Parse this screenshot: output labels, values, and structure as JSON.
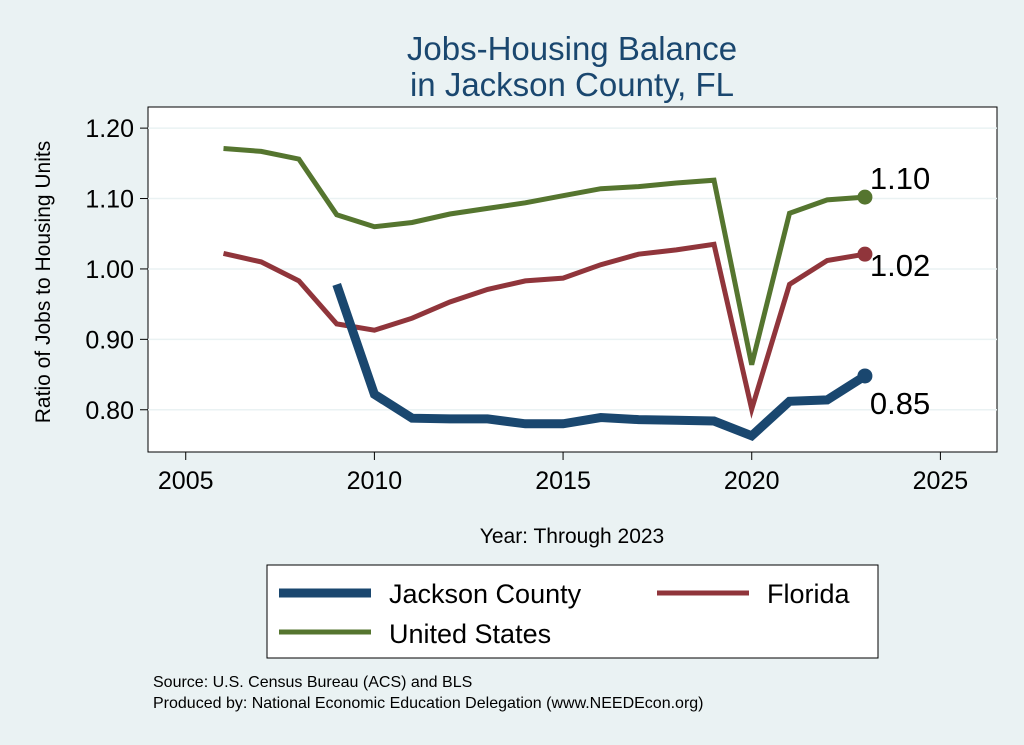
{
  "chart_data": {
    "type": "line",
    "title": [
      "Jobs-Housing Balance",
      "in Jackson County, FL"
    ],
    "xlabel": "Year: Through 2023",
    "ylabel": "Ratio of Jobs to Housing Units",
    "xlim": [
      2004,
      2026.5
    ],
    "ylim": [
      0.74,
      1.23
    ],
    "xticks": [
      2005,
      2010,
      2015,
      2020,
      2025
    ],
    "yticks": [
      0.8,
      0.9,
      1.0,
      1.1,
      1.2
    ],
    "ytick_labels": [
      "0.80",
      "0.90",
      "1.00",
      "1.10",
      "1.20"
    ],
    "grid": true,
    "legend_position": "bottom",
    "series": [
      {
        "name": "Jackson County",
        "color": "#1a476f",
        "width": "thick",
        "x": [
          2009,
          2010,
          2011,
          2012,
          2013,
          2014,
          2015,
          2016,
          2017,
          2018,
          2019,
          2020,
          2021,
          2022,
          2023
        ],
        "values": [
          0.978,
          0.822,
          0.788,
          0.787,
          0.787,
          0.78,
          0.78,
          0.789,
          0.786,
          0.785,
          0.784,
          0.763,
          0.812,
          0.814,
          0.848
        ],
        "end_label": "0.85"
      },
      {
        "name": "Florida",
        "color": "#90353b",
        "width": "medium",
        "x": [
          2006,
          2007,
          2008,
          2009,
          2010,
          2011,
          2012,
          2013,
          2014,
          2015,
          2016,
          2017,
          2018,
          2019,
          2020,
          2021,
          2022,
          2023
        ],
        "values": [
          1.022,
          1.01,
          0.983,
          0.922,
          0.913,
          0.93,
          0.953,
          0.971,
          0.983,
          0.987,
          1.006,
          1.021,
          1.027,
          1.035,
          0.801,
          0.978,
          1.012,
          1.021
        ],
        "end_label": "1.02"
      },
      {
        "name": "United States",
        "color": "#55752f",
        "width": "medium",
        "x": [
          2006,
          2007,
          2008,
          2009,
          2010,
          2011,
          2012,
          2013,
          2014,
          2015,
          2016,
          2017,
          2018,
          2019,
          2020,
          2021,
          2022,
          2023
        ],
        "values": [
          1.171,
          1.167,
          1.156,
          1.077,
          1.06,
          1.066,
          1.078,
          1.086,
          1.094,
          1.104,
          1.114,
          1.117,
          1.122,
          1.126,
          0.864,
          1.079,
          1.098,
          1.102
        ],
        "end_label": "1.10"
      }
    ],
    "source_lines": [
      "Source: U.S. Census Bureau (ACS) and BLS",
      "Produced by: National Economic Education Delegation (www.NEEDEcon.org)"
    ]
  }
}
